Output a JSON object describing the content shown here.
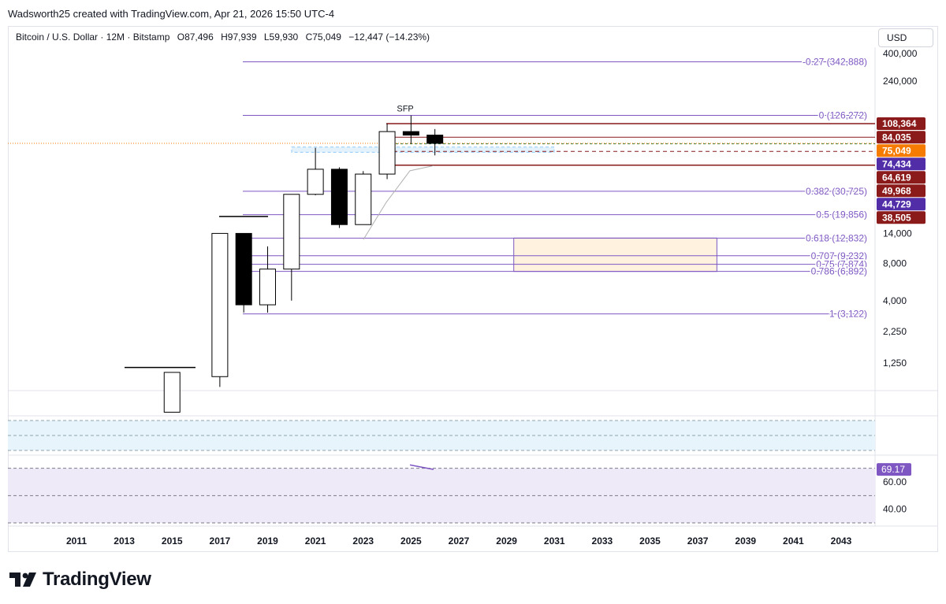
{
  "header": {
    "attribution": "Wadsworth25 created with TradingView.com, Apr 21, 2026 15:50 UTC-4"
  },
  "legend": {
    "symbol": "Bitcoin / U.S. Dollar · 12M · Bitstamp",
    "open": "O87,496",
    "high": "H97,939",
    "low": "L59,930",
    "close": "C75,049",
    "change": "−12,447 (−14.23%)"
  },
  "currency_button": "USD",
  "brand": {
    "name": "TradingView"
  },
  "colors": {
    "bull_fill": "#ffffff",
    "bear_fill": "#000000",
    "fib": "#7e57c2",
    "price_tag": "#f57c00",
    "red_tag": "#8b1a1a",
    "purple_tag": "#512da8"
  },
  "chart_data": [
    {
      "type": "candlestick",
      "scale": "log",
      "ylim": [
        1000,
        500000
      ],
      "y_ticks": [
        {
          "value": 400000,
          "label": "400,000"
        },
        {
          "value": 240000,
          "label": "240,000"
        },
        {
          "value": 14000,
          "label": "14,000"
        },
        {
          "value": 8000,
          "label": "8,000"
        },
        {
          "value": 4000,
          "label": "4,000"
        },
        {
          "value": 2250,
          "label": "2,250"
        },
        {
          "value": 1250,
          "label": "1,250"
        }
      ],
      "x_ticks": [
        "2011",
        "2013",
        "2015",
        "2017",
        "2019",
        "2021",
        "2023",
        "2025",
        "2027",
        "2029",
        "2031",
        "2033",
        "2035",
        "2037",
        "2039",
        "2041",
        "2043"
      ],
      "candles": [
        {
          "year": 2015,
          "open": 500,
          "high": 1050,
          "low": 500,
          "close": 1050
        },
        {
          "year": 2017,
          "open": 970,
          "high": 14000,
          "low": 800,
          "close": 14000
        },
        {
          "year": 2018,
          "open": 14000,
          "high": 14000,
          "low": 3200,
          "close": 3700
        },
        {
          "year": 2019,
          "open": 3700,
          "high": 11000,
          "low": 3200,
          "close": 7200
        },
        {
          "year": 2020,
          "open": 7200,
          "high": 29000,
          "low": 4000,
          "close": 29000
        },
        {
          "year": 2021,
          "open": 29000,
          "high": 69000,
          "low": 28500,
          "close": 46300
        },
        {
          "year": 2022,
          "open": 46300,
          "high": 48000,
          "low": 15500,
          "close": 16500
        },
        {
          "year": 2023,
          "open": 16500,
          "high": 44700,
          "low": 16500,
          "close": 42300
        },
        {
          "year": 2024,
          "open": 42300,
          "high": 108300,
          "low": 38500,
          "close": 93400
        },
        {
          "year": 2025,
          "open": 93400,
          "high": 126272,
          "low": 74400,
          "close": 87496
        },
        {
          "year": 2026,
          "open": 87496,
          "high": 97939,
          "low": 59930,
          "close": 75049
        }
      ],
      "fib_levels": [
        {
          "label": "-0.27 (342,888)",
          "value": 342888
        },
        {
          "label": "0 (126,272)",
          "value": 126272
        },
        {
          "label": "0.382 (30,725)",
          "value": 30725
        },
        {
          "label": "0.5 (19,856)",
          "value": 19856
        },
        {
          "label": "0.618 (12,832)",
          "value": 12832
        },
        {
          "label": "0.707 (9,232)",
          "value": 9232
        },
        {
          "label": "0.75 (7,874)",
          "value": 7874
        },
        {
          "label": "0.786 (6,892)",
          "value": 6892
        },
        {
          "label": "1 (3,122)",
          "value": 3122
        }
      ],
      "price_tags": [
        {
          "label": "108,364",
          "value": 108364,
          "style": "red"
        },
        {
          "label": "84,035",
          "value": 84035,
          "style": "red"
        },
        {
          "label": "75,049",
          "value": 75049,
          "style": "orange"
        },
        {
          "label": "74,434",
          "value": 74434,
          "style": "purple"
        },
        {
          "label": "64,619",
          "value": 64619,
          "style": "red"
        },
        {
          "label": "49,968",
          "value": 49968,
          "style": "red"
        },
        {
          "label": "44,729",
          "value": 44729,
          "style": "purple"
        },
        {
          "label": "38,505",
          "value": 38505,
          "style": "red"
        }
      ],
      "annotations": [
        {
          "label": "SFP",
          "year": 2025,
          "value": 126272
        }
      ]
    },
    {
      "type": "line",
      "panel": "indicator",
      "ylim": [
        30,
        75
      ],
      "y_ticks": [
        {
          "value": 60,
          "label": "60.00"
        },
        {
          "value": 40,
          "label": "40.00"
        }
      ],
      "last_value": {
        "label": "69.17",
        "value": 69.17
      }
    }
  ]
}
